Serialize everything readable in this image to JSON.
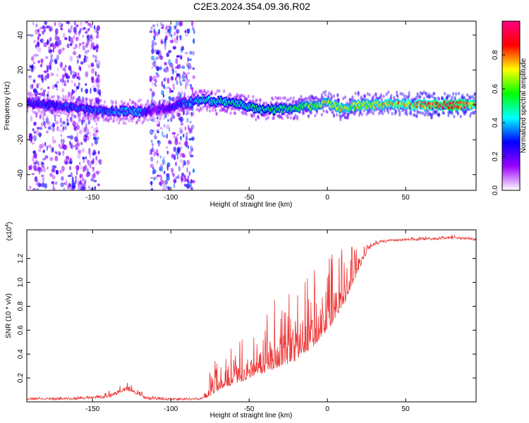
{
  "figure": {
    "title": "C2E3.2024.354.09.36.R02"
  },
  "chart_data": [
    {
      "type": "heatmap",
      "xlabel": "Height of straight line (km)",
      "ylabel": "Frequency (Hz)",
      "xlim": [
        -192,
        95
      ],
      "ylim": [
        -49,
        48
      ],
      "x_ticks": [
        -150,
        -100,
        -50,
        0,
        50
      ],
      "y_ticks": [
        -40,
        -20,
        0,
        20,
        40
      ],
      "colorbar": {
        "label": "Normalized spectral amplitude",
        "range": [
          0.0,
          1.0
        ],
        "ticks": [
          0.0,
          0.2,
          0.4,
          0.6,
          0.8
        ],
        "colormap": [
          "#ffffff",
          "#9900ff",
          "#0000ff",
          "#00ffff",
          "#00ff00",
          "#ffff00",
          "#ff0000",
          "#ff0080"
        ]
      },
      "ridge": {
        "description": "signal near 0 Hz across the track",
        "x": [
          -190,
          -150,
          -120,
          -110,
          -80,
          -60,
          -40,
          -20,
          0,
          10,
          20,
          40,
          60,
          80,
          95
        ],
        "freq": [
          1,
          -3,
          -4,
          -3,
          3,
          1,
          -3,
          -2,
          1,
          -2,
          0,
          0,
          0,
          0,
          0
        ],
        "amplitude": [
          0.3,
          0.35,
          0.4,
          0.2,
          0.45,
          0.5,
          0.5,
          0.6,
          0.7,
          0.7,
          0.7,
          0.75,
          0.8,
          0.95,
          0.8
        ]
      },
      "noise_regions": [
        {
          "x_range": [
            -190,
            -145
          ],
          "amplitude": 0.2
        },
        {
          "x_range": [
            -113,
            -85
          ],
          "amplitude": 0.25
        }
      ]
    },
    {
      "type": "line",
      "xlabel": "Height of straight line (km)",
      "ylabel": "SNR (10 * v/v)",
      "y_multiplier": "(x10",
      "y_multiplier_exp": "4",
      "xlim": [
        -192,
        95
      ],
      "ylim": [
        0,
        14400
      ],
      "x_ticks": [
        -150,
        -100,
        -50,
        0,
        50
      ],
      "y_ticks": [
        2000,
        4000,
        6000,
        8000,
        10000,
        12000
      ],
      "y_tick_labels": [
        "0.2",
        "0.4",
        "0.6",
        "0.8",
        "1.0",
        "1.2"
      ],
      "color": "#ee3333",
      "envelope": {
        "x": [
          -192,
          -160,
          -140,
          -128,
          -115,
          -100,
          -80,
          -75,
          -70,
          -60,
          -50,
          -40,
          -30,
          -20,
          -10,
          0,
          10,
          20,
          25,
          30,
          40,
          60,
          80,
          95
        ],
        "base": [
          250,
          250,
          400,
          1000,
          250,
          200,
          250,
          500,
          1000,
          1500,
          2000,
          2500,
          3000,
          3500,
          4500,
          6000,
          8000,
          11000,
          12500,
          13200,
          13500,
          13600,
          13700,
          13600
        ],
        "peak": [
          300,
          400,
          900,
          1800,
          600,
          300,
          300,
          2500,
          4000,
          5000,
          6000,
          8000,
          9000,
          10000,
          11000,
          12500,
          13300,
          13400,
          13500,
          13500,
          13600,
          13800,
          13900,
          13700
        ]
      }
    }
  ]
}
